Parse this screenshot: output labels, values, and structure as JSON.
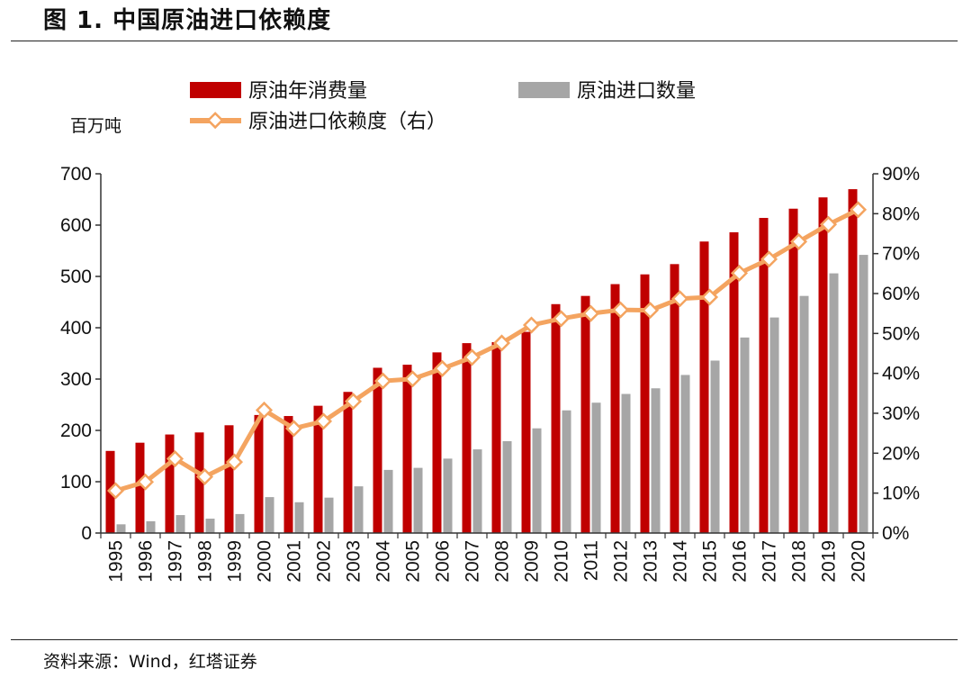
{
  "figure": {
    "title": "图 1. 中国原油进口依赖度",
    "source": "资料来源：Wind，红塔证券"
  },
  "colors": {
    "consumption": "#c00000",
    "imports": "#a6a6a6",
    "dependency": "#f4a460",
    "dependency_marker_fill": "#ffffff"
  },
  "chart_data": {
    "type": "bar",
    "categories": [
      "1995",
      "1996",
      "1997",
      "1998",
      "1999",
      "2000",
      "2001",
      "2002",
      "2003",
      "2004",
      "2005",
      "2006",
      "2007",
      "2008",
      "2009",
      "2010",
      "2011",
      "2012",
      "2013",
      "2014",
      "2015",
      "2016",
      "2017",
      "2018",
      "2019",
      "2020"
    ],
    "y_unit": "百万吨",
    "ylim": [
      0,
      700
    ],
    "y_ticks": [
      0,
      100,
      200,
      300,
      400,
      500,
      600,
      700
    ],
    "y2lim": [
      0,
      90
    ],
    "y2_ticks": [
      "0%",
      "10%",
      "20%",
      "30%",
      "40%",
      "50%",
      "60%",
      "70%",
      "80%",
      "90%"
    ],
    "grid": false,
    "legend_position": "top",
    "series": [
      {
        "name": "原油年消费量",
        "type": "bar",
        "axis": "left",
        "values": [
          160,
          176,
          192,
          196,
          210,
          230,
          228,
          248,
          275,
          322,
          328,
          352,
          370,
          372,
          392,
          446,
          462,
          485,
          504,
          524,
          568,
          586,
          614,
          632,
          654,
          670
        ]
      },
      {
        "name": "原油进口数量",
        "type": "bar",
        "axis": "left",
        "values": [
          17,
          23,
          35,
          28,
          37,
          70,
          60,
          69,
          91,
          123,
          127,
          145,
          163,
          179,
          204,
          239,
          254,
          271,
          282,
          308,
          336,
          381,
          420,
          462,
          506,
          542
        ]
      },
      {
        "name": "原油进口依赖度（右）",
        "type": "line",
        "axis": "right",
        "values": [
          10.6,
          12.8,
          18.6,
          14.1,
          17.8,
          30.8,
          26.2,
          28.0,
          33.0,
          38.1,
          38.6,
          41.2,
          44.0,
          47.6,
          52.1,
          53.7,
          55.0,
          55.9,
          55.8,
          58.7,
          59.1,
          65.1,
          68.6,
          73.0,
          77.3,
          81.0
        ]
      }
    ]
  }
}
